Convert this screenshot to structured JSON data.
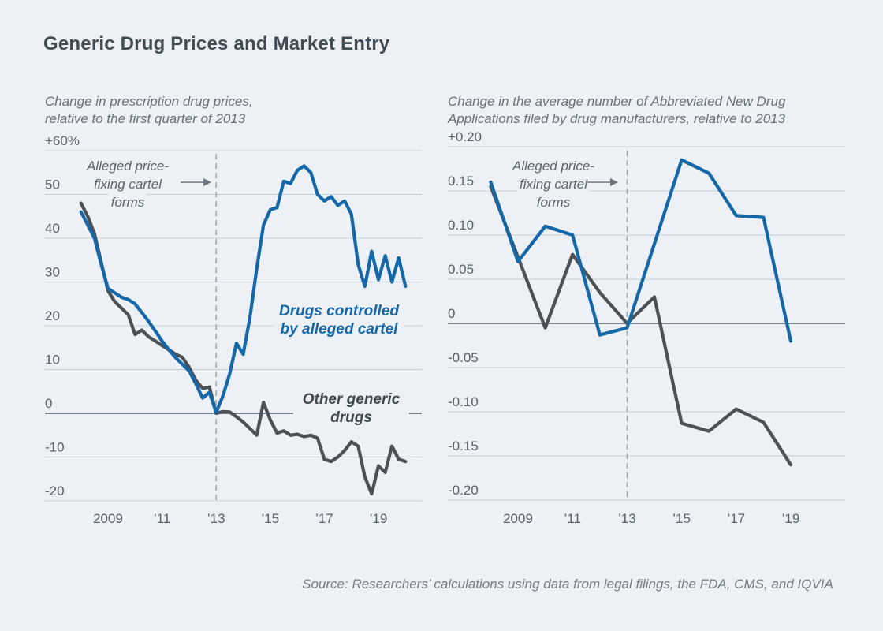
{
  "page": {
    "title": "Generic Drug Prices and Market Entry",
    "source": "Source: Researchers’ calculations using data from legal filings, the FDA, CMS, and IQVIA",
    "background": "#edf1f5",
    "accent_blue": "#1568a8",
    "accent_dark": "#4b5156"
  },
  "chart_data": [
    {
      "type": "line",
      "title": "Change in prescription drug prices, relative to the first quarter of 2013",
      "subtitle_lines": [
        "Change in prescription drug prices,",
        "relative to the first quarter of 2013"
      ],
      "annotation": {
        "lines": [
          "Alleged price-",
          "fixing cartel",
          "forms"
        ]
      },
      "event_year": 2013,
      "x_axis": {
        "ticks": [
          {
            "label": "2009",
            "value": 2009
          },
          {
            "label": "’11",
            "value": 2011
          },
          {
            "label": "’13",
            "value": 2013
          },
          {
            "label": "’15",
            "value": 2015
          },
          {
            "label": "’17",
            "value": 2017
          },
          {
            "label": "’19",
            "value": 2019
          }
        ],
        "range": [
          2008,
          2020.7
        ]
      },
      "y_axis": {
        "ticks": [
          {
            "label": "+60%",
            "value": 60
          },
          {
            "label": "50",
            "value": 50
          },
          {
            "label": "40",
            "value": 40
          },
          {
            "label": "30",
            "value": 30
          },
          {
            "label": "20",
            "value": 20
          },
          {
            "label": "10",
            "value": 10
          },
          {
            "label": "0",
            "value": 0
          },
          {
            "label": "-10",
            "value": -10
          },
          {
            "label": "-20",
            "value": -20
          }
        ],
        "range": [
          -20,
          60
        ],
        "unit": "percent"
      },
      "series": [
        {
          "name": "Drugs controlled by alleged cartel",
          "label_lines": [
            "Drugs controlled",
            "by alleged cartel"
          ],
          "color": "#1568a8",
          "x_start": 2008,
          "x_step": 0.25,
          "values": [
            46,
            43,
            40,
            34,
            28.5,
            27.5,
            26.5,
            26,
            25,
            23,
            21,
            18.8,
            16.5,
            14.5,
            12.7,
            11.2,
            9.7,
            6.7,
            3.5,
            4.8,
            0.2,
            4,
            9,
            16,
            13.5,
            22,
            33,
            43,
            46.5,
            47,
            53,
            52.5,
            55.5,
            56.5,
            55,
            50,
            48.5,
            49.5,
            47.5,
            48.5,
            45.5,
            34,
            29,
            37,
            30.5,
            36,
            30,
            35.5,
            29
          ]
        },
        {
          "name": "Other generic drugs",
          "label_lines": [
            "Other generic",
            "drugs"
          ],
          "color": "#4b5156",
          "x_start": 2008,
          "x_step": 0.25,
          "values": [
            48,
            45,
            41,
            34.5,
            28,
            25.5,
            24,
            22.5,
            18,
            19,
            17.5,
            16.5,
            15.5,
            14.5,
            13.5,
            12.8,
            10.5,
            7.5,
            5.7,
            6,
            0,
            0.4,
            0.3,
            -0.8,
            -2,
            -3.5,
            -5,
            2.5,
            -1.5,
            -4.5,
            -4,
            -5,
            -4.8,
            -5.3,
            -5,
            -5.7,
            -10.5,
            -11,
            -10,
            -8.5,
            -6.5,
            -7.5,
            -14.5,
            -18.4,
            -12,
            -13.5,
            -7.5,
            -10.5,
            -11
          ]
        }
      ]
    },
    {
      "type": "line",
      "title": "Change in the average number of Abbreviated New Drug Applications filed by drug manufacturers, relative to 2013",
      "subtitle_lines": [
        "Change in the average number of Abbreviated New Drug",
        "Applications filed by drug manufacturers, relative to 2013"
      ],
      "annotation": {
        "lines": [
          "Alleged price-",
          "fixing cartel",
          "forms"
        ]
      },
      "event_year": 2013,
      "x_axis": {
        "ticks": [
          {
            "label": "2009",
            "value": 2009
          },
          {
            "label": "’11",
            "value": 2011
          },
          {
            "label": "’13",
            "value": 2013
          },
          {
            "label": "’15",
            "value": 2015
          },
          {
            "label": "’17",
            "value": 2017
          },
          {
            "label": "’19",
            "value": 2019
          }
        ],
        "range": [
          2008,
          2020.5
        ]
      },
      "y_axis": {
        "ticks": [
          {
            "label": "+0.20",
            "value": 0.2
          },
          {
            "label": "0.15",
            "value": 0.15
          },
          {
            "label": "0.10",
            "value": 0.1
          },
          {
            "label": "0.05",
            "value": 0.05
          },
          {
            "label": "0",
            "value": 0
          },
          {
            "label": "-0.05",
            "value": -0.05
          },
          {
            "label": "-0.10",
            "value": -0.1
          },
          {
            "label": "-0.15",
            "value": -0.15
          },
          {
            "label": "-0.20",
            "value": -0.2
          }
        ],
        "range": [
          -0.2,
          0.2
        ],
        "unit": "applications"
      },
      "series": [
        {
          "name": "Drugs controlled by alleged cartel",
          "color": "#1568a8",
          "x_start": 2008,
          "x_step": 1,
          "values": [
            0.16,
            0.07,
            0.11,
            0.1,
            -0.013,
            -0.005,
            0.09,
            0.185,
            0.17,
            0.122,
            0.12,
            -0.02
          ]
        },
        {
          "name": "Other generic drugs",
          "color": "#4b5156",
          "x_start": 2008,
          "x_step": 1,
          "values": [
            0.155,
            0.075,
            -0.005,
            0.078,
            0.035,
            0,
            0.03,
            -0.113,
            -0.122,
            -0.097,
            -0.112,
            -0.16
          ]
        }
      ]
    }
  ]
}
